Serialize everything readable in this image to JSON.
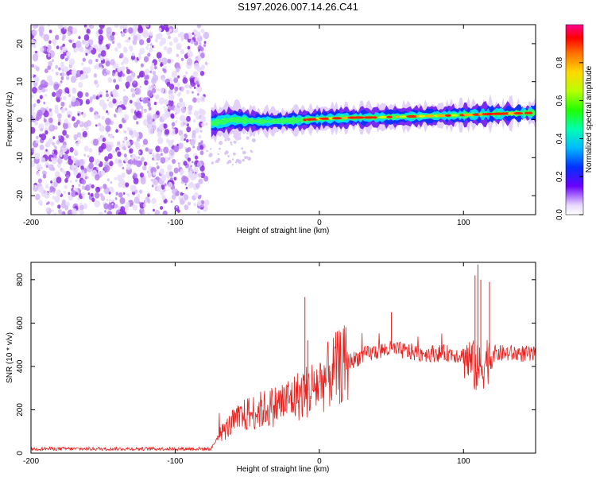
{
  "title": "S197.2026.007.14.26.C41",
  "chart_data": [
    {
      "type": "heatmap",
      "title": "S197.2026.007.14.26.C41",
      "xlabel": "Height of straight line (km)",
      "ylabel": "Frequency (Hz)",
      "xlim": [
        -200,
        150
      ],
      "ylim": [
        -25,
        25
      ],
      "xticks": [
        -200,
        -100,
        0,
        100
      ],
      "yticks": [
        -20,
        -10,
        0,
        10,
        20
      ],
      "colorbar": {
        "label": "Normalized spectral amplitude",
        "range": [
          0,
          1
        ],
        "ticks": [
          0.0,
          0.2,
          0.4,
          0.6,
          0.8
        ]
      },
      "noise_region_km": [
        -200,
        -78
      ],
      "signal_track": {
        "x": [
          -75,
          -60,
          -40,
          -20,
          0,
          20,
          40,
          60,
          80,
          100,
          120,
          150
        ],
        "freq": [
          -1.0,
          0.0,
          -0.5,
          -0.3,
          0.2,
          0.5,
          0.6,
          0.8,
          1.0,
          1.2,
          1.5,
          1.8
        ]
      }
    },
    {
      "type": "line",
      "title": "",
      "xlabel": "Height of straight line (km)",
      "ylabel": "SNR (10 * v/v)",
      "xlim": [
        -200,
        150
      ],
      "ylim": [
        0,
        880
      ],
      "xticks": [
        -200,
        -100,
        0,
        100
      ],
      "yticks": [
        0,
        200,
        400,
        600,
        800
      ],
      "series": [
        {
          "name": "SNR",
          "color": "#e8211e",
          "x": [
            -200,
            -150,
            -100,
            -75,
            -70,
            -60,
            -50,
            -40,
            -30,
            -20,
            -10,
            0,
            10,
            20,
            30,
            40,
            50,
            60,
            70,
            80,
            90,
            100,
            105,
            110,
            115,
            120,
            130,
            140,
            150
          ],
          "y": [
            20,
            20,
            20,
            20,
            80,
            140,
            180,
            200,
            220,
            250,
            280,
            320,
            380,
            420,
            450,
            470,
            480,
            470,
            460,
            460,
            460,
            450,
            420,
            380,
            420,
            460,
            460,
            460,
            450
          ]
        }
      ],
      "spikes": [
        {
          "x": -10,
          "y": 720
        },
        {
          "x": -8,
          "y": 520
        },
        {
          "x": 50,
          "y": 650
        },
        {
          "x": 108,
          "y": 820
        },
        {
          "x": 110,
          "y": 870
        },
        {
          "x": 112,
          "y": 800
        },
        {
          "x": 118,
          "y": 790
        }
      ]
    }
  ]
}
